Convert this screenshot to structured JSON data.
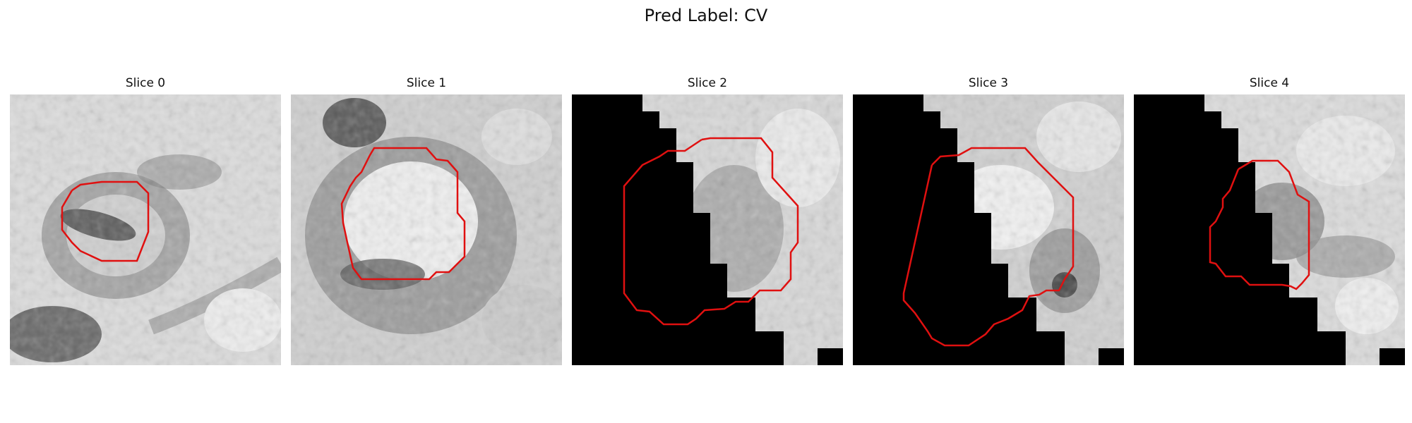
{
  "figure": {
    "title": "Pred Label: CV",
    "panels": [
      {
        "label": "Slice 0"
      },
      {
        "label": "Slice 1"
      },
      {
        "label": "Slice 2"
      },
      {
        "label": "Slice 3"
      },
      {
        "label": "Slice 4"
      }
    ],
    "contour_color": "#e01010",
    "background_masked_color": "#000000"
  }
}
